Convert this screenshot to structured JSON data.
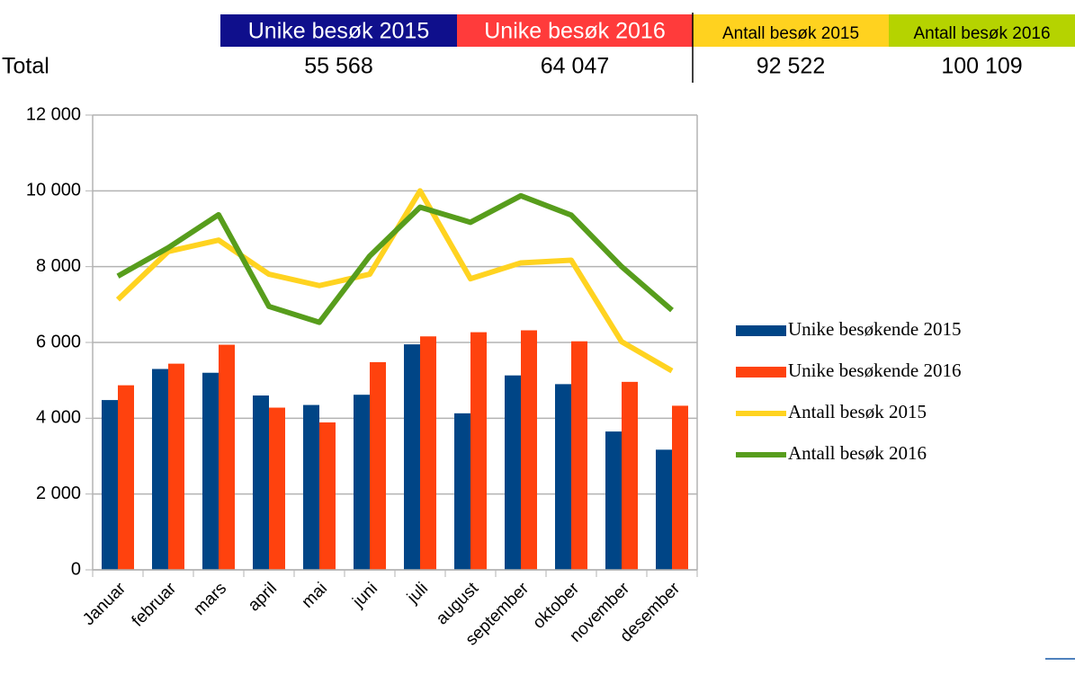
{
  "table": {
    "headers": [
      "Unike besøk 2015",
      "Unike besøk 2016",
      "Antall besøk 2015",
      "Antall besøk 2016"
    ],
    "header_colors": [
      "#0f0f8c",
      "#ff3b3b",
      "#ffd21f",
      "#b5d300"
    ],
    "header_text_colors": [
      "#ffffff",
      "#ffffff",
      "#000000",
      "#000000"
    ],
    "rows": [
      [
        "Total",
        "55 568",
        "64 047",
        "92 522",
        "100 109"
      ]
    ]
  },
  "chart_data": {
    "type": "bar",
    "categories": [
      "Januar",
      "februar",
      "mars",
      "april",
      "mai",
      "juni",
      "juli",
      "august",
      "september",
      "oktober",
      "november",
      "desember"
    ],
    "series": [
      {
        "name": "Unike besøkende 2015",
        "type": "bar",
        "color": "#004586",
        "values": [
          4480,
          5300,
          5200,
          4600,
          4350,
          4620,
          5950,
          4130,
          5130,
          4900,
          3650,
          3170
        ]
      },
      {
        "name": "Unike besøkende 2016",
        "type": "bar",
        "color": "#ff420e",
        "values": [
          4870,
          5440,
          5940,
          4280,
          3890,
          5480,
          6160,
          6270,
          6320,
          6030,
          4960,
          4330
        ]
      },
      {
        "name": "Antall besøk 2015",
        "type": "line",
        "color": "#ffd320",
        "values": [
          7130,
          8400,
          8700,
          7800,
          7500,
          7800,
          10000,
          7680,
          8100,
          8170,
          6020,
          5250
        ]
      },
      {
        "name": "Antall besøk 2016",
        "type": "line",
        "color": "#579d1c",
        "values": [
          7750,
          8500,
          9370,
          6950,
          6530,
          8280,
          9570,
          9170,
          9870,
          9360,
          8000,
          6850
        ]
      }
    ],
    "ylim": [
      0,
      12000
    ],
    "yticks": [
      0,
      {
        "value": 2000,
        "label": "2 000"
      },
      {
        "value": 4000,
        "label": "4 000"
      },
      {
        "value": 6000,
        "label": "6 000"
      },
      {
        "value": 8000,
        "label": "8 000"
      },
      {
        "value": 10000,
        "label": "10 000"
      },
      {
        "value": 12000,
        "label": "12 000"
      }
    ],
    "grid": true,
    "legend": "right"
  }
}
